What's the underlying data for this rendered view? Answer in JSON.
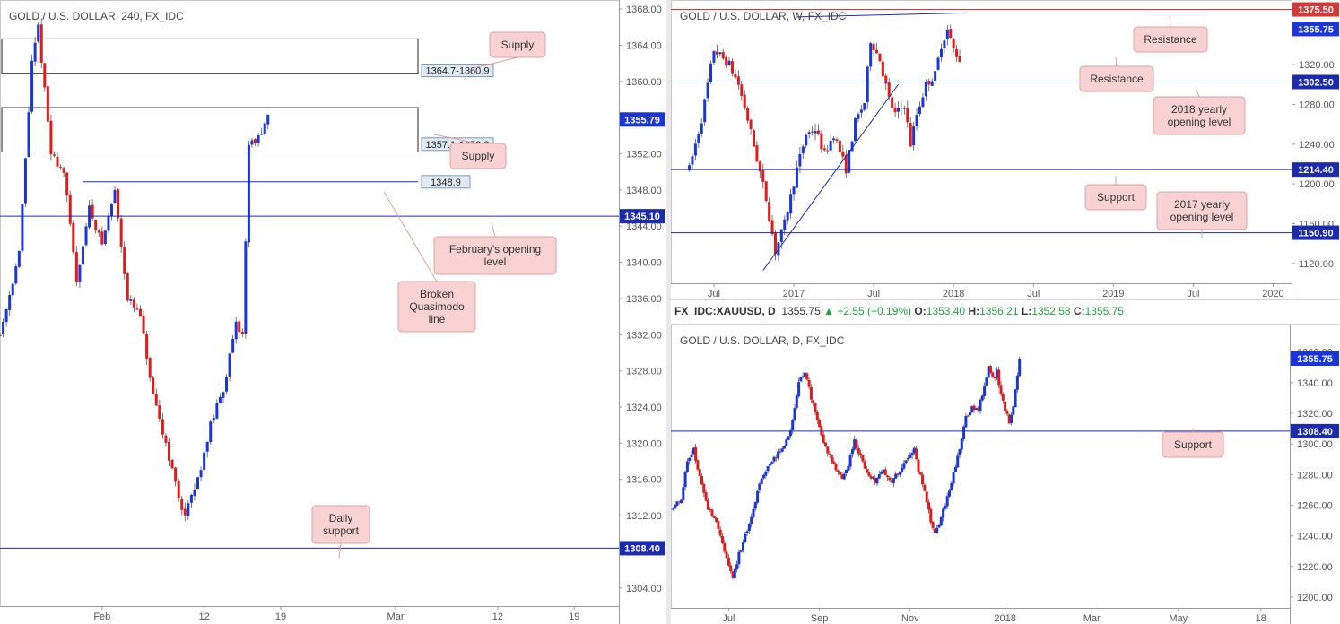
{
  "colors": {
    "up": "#1b36d6",
    "down": "#e01b1b",
    "level": "#1b2bb0",
    "resistance": "#d23a3a",
    "note_bg": "#f8d2d2",
    "note_border": "#e0a0a0",
    "tag_bg": "#dfeaf3"
  },
  "quote_bar": {
    "symbol": "FX_IDC:XAUUSD, D",
    "last": "1355.75",
    "change": "▲ +2.55 (+0.19%)",
    "o_label": "O:",
    "o": "1353.40",
    "h_label": "H:",
    "h": "1356.21",
    "l_label": "L:",
    "l": "1352.58",
    "c_label": "C:",
    "c": "1355.75"
  },
  "chart_data": [
    {
      "id": "h4",
      "type": "candlestick",
      "title": "GOLD / U.S. DOLLAR, 240, FX_IDC",
      "ylim": [
        1302,
        1369
      ],
      "yticks": [
        1368.0,
        1364.0,
        1360.0,
        1356.0,
        1352.0,
        1348.0,
        1344.0,
        1340.0,
        1336.0,
        1332.0,
        1328.0,
        1324.0,
        1320.0,
        1316.0,
        1312.0,
        1308.0,
        1304.0
      ],
      "xticks": [
        {
          "t": 16,
          "label": "Feb"
        },
        {
          "t": 32,
          "label": "12"
        },
        {
          "t": 44,
          "label": "19"
        },
        {
          "t": 62,
          "label": "Mar"
        },
        {
          "t": 78,
          "label": "12"
        },
        {
          "t": 90,
          "label": "19"
        }
      ],
      "xlim": [
        0,
        97
      ],
      "anchors": [
        [
          0,
          1332
        ],
        [
          3,
          1341
        ],
        [
          5,
          1362
        ],
        [
          6,
          1366
        ],
        [
          8,
          1352
        ],
        [
          10,
          1350
        ],
        [
          12,
          1338
        ],
        [
          14,
          1346
        ],
        [
          16,
          1342
        ],
        [
          18,
          1348
        ],
        [
          20,
          1336
        ],
        [
          22,
          1334
        ],
        [
          24,
          1325
        ],
        [
          26,
          1320
        ],
        [
          28,
          1314
        ],
        [
          29,
          1312
        ],
        [
          31,
          1316
        ],
        [
          33,
          1322
        ],
        [
          35,
          1326
        ],
        [
          37,
          1333
        ],
        [
          38,
          1332
        ],
        [
          39,
          1353
        ],
        [
          41,
          1354
        ],
        [
          42,
          1356
        ]
      ],
      "lines": [
        {
          "y": 1345.1,
          "tag": "1345.10",
          "style": "axis"
        },
        {
          "y": 1308.4,
          "tag": "1308.40",
          "style": "axis"
        },
        {
          "y": 1348.9,
          "tag": "1348.9",
          "style": "inline",
          "from": 13
        }
      ],
      "zones": [
        {
          "top": 1364.7,
          "bottom": 1360.9,
          "label": "1364.7-1360.9"
        },
        {
          "top": 1357.1,
          "bottom": 1352.2,
          "label": "1357.1-1352.2"
        }
      ],
      "last_tag": {
        "y": 1355.79,
        "label": "1355.79"
      },
      "notes": [
        {
          "lines": [
            "Supply"
          ]
        },
        {
          "lines": [
            "Supply"
          ]
        },
        {
          "lines": [
            "February's opening",
            "level"
          ]
        },
        {
          "lines": [
            "Broken",
            "Quasimodo",
            "line"
          ]
        },
        {
          "lines": [
            "Daily",
            "support"
          ]
        }
      ]
    },
    {
      "id": "weekly",
      "type": "candlestick",
      "title": "GOLD / U.S. DOLLAR, W, FX_IDC",
      "ylim": [
        1100,
        1385
      ],
      "yticks": [
        1360.0,
        1320.0,
        1280.0,
        1240.0,
        1200.0,
        1160.0,
        1120.0
      ],
      "xticks": [
        {
          "t": 8,
          "label": "Jul"
        },
        {
          "t": 34,
          "label": "2017"
        },
        {
          "t": 60,
          "label": "Jul"
        },
        {
          "t": 86,
          "label": "2018"
        },
        {
          "t": 112,
          "label": "Jul"
        },
        {
          "t": 138,
          "label": "2019"
        },
        {
          "t": 164,
          "label": "Jul"
        },
        {
          "t": 190,
          "label": "2020"
        }
      ],
      "xlim": [
        -6,
        196
      ],
      "anchors": [
        [
          0,
          1215
        ],
        [
          4,
          1265
        ],
        [
          8,
          1335
        ],
        [
          13,
          1320
        ],
        [
          16,
          1300
        ],
        [
          19,
          1265
        ],
        [
          22,
          1225
        ],
        [
          25,
          1185
        ],
        [
          28,
          1132
        ],
        [
          31,
          1160
        ],
        [
          35,
          1215
        ],
        [
          38,
          1250
        ],
        [
          41,
          1255
        ],
        [
          44,
          1230
        ],
        [
          47,
          1250
        ],
        [
          51,
          1215
        ],
        [
          54,
          1262
        ],
        [
          57,
          1282
        ],
        [
          59,
          1345
        ],
        [
          62,
          1325
        ],
        [
          65,
          1285
        ],
        [
          67,
          1270
        ],
        [
          70,
          1280
        ],
        [
          72,
          1240
        ],
        [
          74,
          1270
        ],
        [
          77,
          1300
        ],
        [
          80,
          1310
        ],
        [
          82,
          1340
        ],
        [
          84,
          1355
        ],
        [
          86,
          1335
        ],
        [
          88,
          1325
        ]
      ],
      "lines": [
        {
          "y": 1375.5,
          "tag": "1375.50",
          "style": "resistance"
        },
        {
          "y": 1302.5,
          "tag": "1302.50",
          "style": "axis"
        },
        {
          "y": 1214.4,
          "tag": "1214.40",
          "style": "axis"
        },
        {
          "y": 1150.9,
          "tag": "1150.90",
          "style": "axis"
        }
      ],
      "last_tag": {
        "y": 1355.75,
        "label": "1355.75"
      },
      "channel": [
        [
          [
            24,
            1113
          ],
          [
            68,
            1300
          ]
        ],
        [
          [
            35,
            1368
          ],
          [
            90,
            1372
          ]
        ]
      ],
      "notes": [
        {
          "lines": [
            "Resistance"
          ]
        },
        {
          "lines": [
            "Resistance"
          ]
        },
        {
          "lines": [
            "2018 yearly",
            "opening level"
          ]
        },
        {
          "lines": [
            "Support"
          ]
        },
        {
          "lines": [
            "2017 yearly",
            "opening level"
          ]
        }
      ]
    },
    {
      "id": "daily",
      "type": "candlestick",
      "title": "GOLD / U.S. DOLLAR, D, FX_IDC",
      "ylim": [
        1193,
        1378
      ],
      "yticks": [
        1360.0,
        1340.0,
        1320.0,
        1300.0,
        1280.0,
        1260.0,
        1240.0,
        1220.0,
        1200.0
      ],
      "xticks": [
        {
          "t": 14,
          "label": "Jul"
        },
        {
          "t": 58,
          "label": "Sep"
        },
        {
          "t": 102,
          "label": "Nov"
        },
        {
          "t": 148,
          "label": "2018"
        },
        {
          "t": 190,
          "label": "Mar"
        },
        {
          "t": 232,
          "label": "May"
        },
        {
          "t": 272,
          "label": "18"
        }
      ],
      "xlim": [
        -14,
        286
      ],
      "anchors": [
        [
          -13,
          1258
        ],
        [
          -9,
          1265
        ],
        [
          -6,
          1290
        ],
        [
          -3,
          1296
        ],
        [
          0,
          1278
        ],
        [
          4,
          1258
        ],
        [
          7,
          1252
        ],
        [
          10,
          1240
        ],
        [
          13,
          1225
        ],
        [
          16,
          1212
        ],
        [
          19,
          1228
        ],
        [
          22,
          1240
        ],
        [
          26,
          1256
        ],
        [
          29,
          1275
        ],
        [
          33,
          1285
        ],
        [
          37,
          1292
        ],
        [
          41,
          1300
        ],
        [
          44,
          1308
        ],
        [
          48,
          1340
        ],
        [
          51,
          1348
        ],
        [
          54,
          1330
        ],
        [
          57,
          1317
        ],
        [
          60,
          1300
        ],
        [
          63,
          1292
        ],
        [
          66,
          1283
        ],
        [
          69,
          1278
        ],
        [
          72,
          1287
        ],
        [
          75,
          1302
        ],
        [
          78,
          1292
        ],
        [
          81,
          1282
        ],
        [
          85,
          1276
        ],
        [
          89,
          1282
        ],
        [
          93,
          1275
        ],
        [
          97,
          1283
        ],
        [
          101,
          1290
        ],
        [
          104,
          1297
        ],
        [
          106,
          1283
        ],
        [
          109,
          1270
        ],
        [
          112,
          1250
        ],
        [
          114,
          1240
        ],
        [
          117,
          1252
        ],
        [
          120,
          1265
        ],
        [
          123,
          1280
        ],
        [
          126,
          1297
        ],
        [
          129,
          1318
        ],
        [
          132,
          1323
        ],
        [
          135,
          1322
        ],
        [
          138,
          1338
        ],
        [
          140,
          1350
        ],
        [
          142,
          1342
        ],
        [
          144,
          1347
        ],
        [
          146,
          1332
        ],
        [
          148,
          1322
        ],
        [
          150,
          1315
        ],
        [
          152,
          1326
        ],
        [
          154,
          1345
        ],
        [
          155,
          1355
        ]
      ],
      "lines": [
        {
          "y": 1308.4,
          "tag": "1308.40",
          "style": "axis"
        }
      ],
      "last_tag": {
        "y": 1355.75,
        "label": "1355.75"
      },
      "notes": [
        {
          "lines": [
            "Support"
          ]
        }
      ]
    }
  ]
}
